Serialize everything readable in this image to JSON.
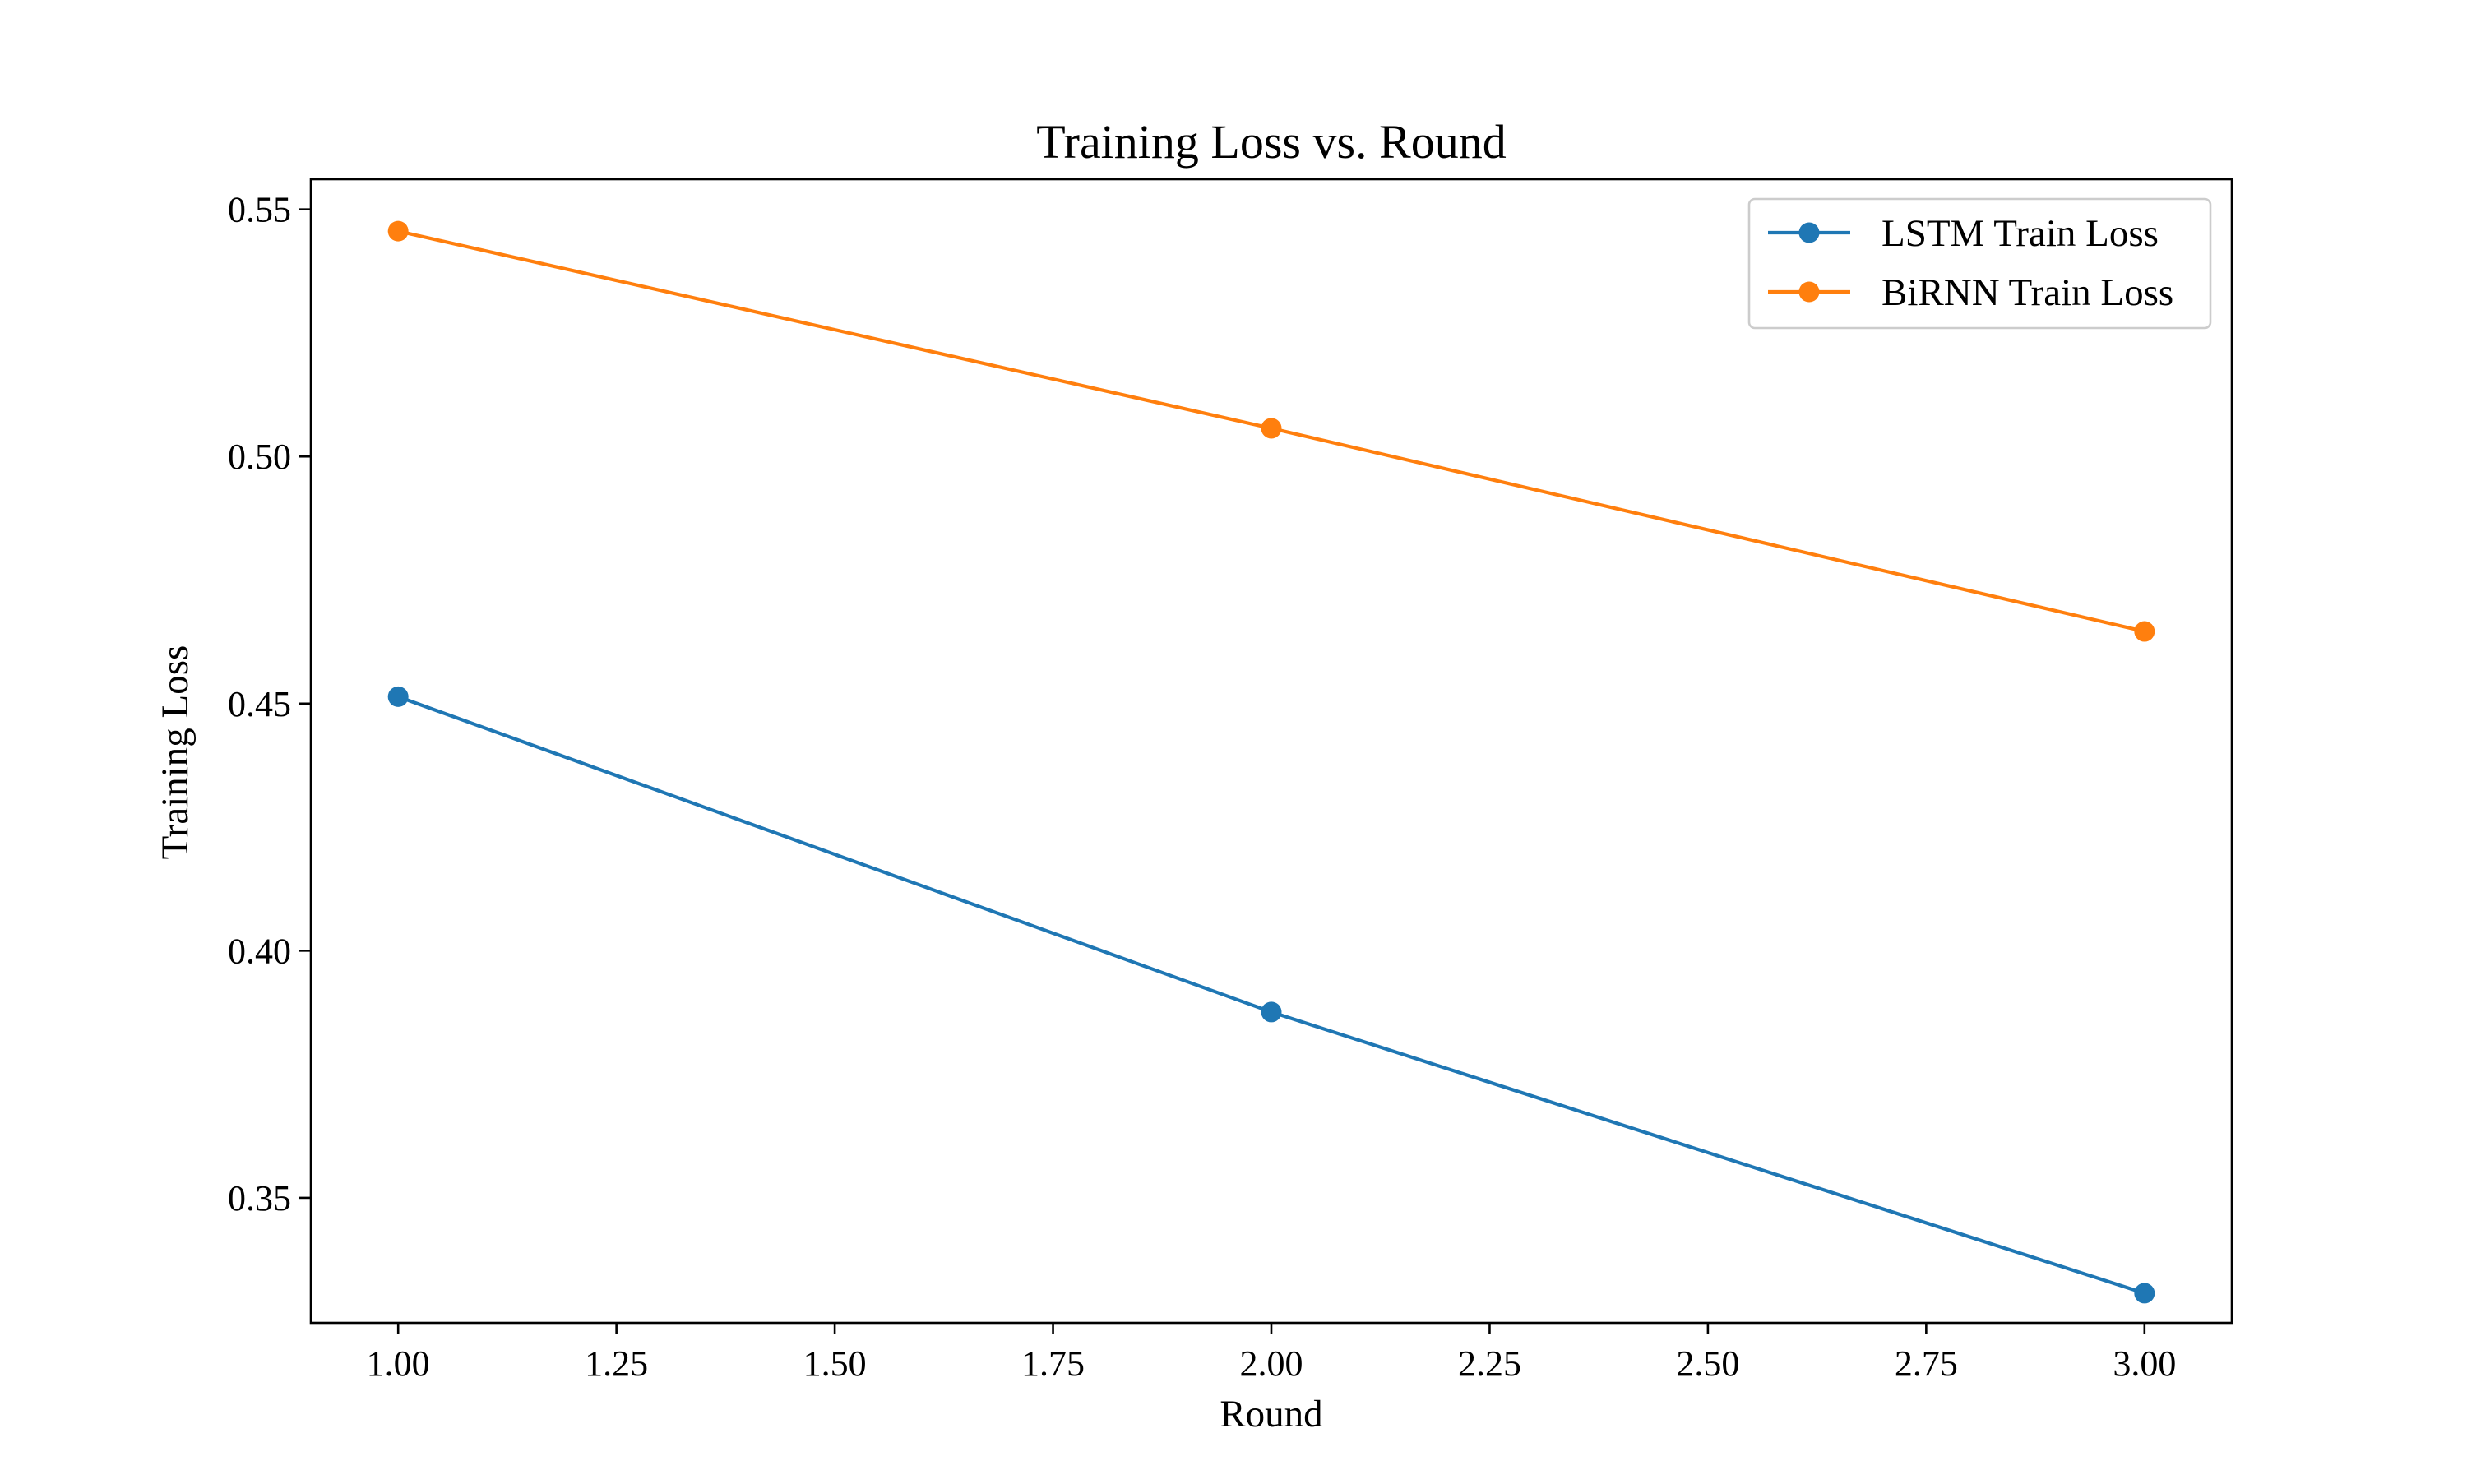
{
  "chart_data": {
    "type": "line",
    "title": "Training Loss vs. Round",
    "xlabel": "Round",
    "ylabel": "Training Loss",
    "x": [
      1,
      2,
      3
    ],
    "series": [
      {
        "name": "LSTM Train Loss",
        "color": "#1f77b4",
        "values": [
          0.4514,
          0.3876,
          0.3307
        ]
      },
      {
        "name": "BiRNN Train Loss",
        "color": "#ff7f0e",
        "values": [
          0.5456,
          0.5057,
          0.4646
        ]
      }
    ],
    "xlim": [
      0.9,
      3.1
    ],
    "ylim": [
      0.3247,
      0.5561
    ],
    "xticks": [
      1.0,
      1.25,
      1.5,
      1.75,
      2.0,
      2.25,
      2.5,
      2.75,
      3.0
    ],
    "xtick_labels": [
      "1.00",
      "1.25",
      "1.50",
      "1.75",
      "2.00",
      "2.25",
      "2.50",
      "2.75",
      "3.00"
    ],
    "yticks": [
      0.35,
      0.4,
      0.45,
      0.5,
      0.55
    ],
    "ytick_labels": [
      "0.35",
      "0.40",
      "0.45",
      "0.50",
      "0.55"
    ],
    "marker": "circle",
    "grid": false,
    "legend_position": "top-right"
  }
}
